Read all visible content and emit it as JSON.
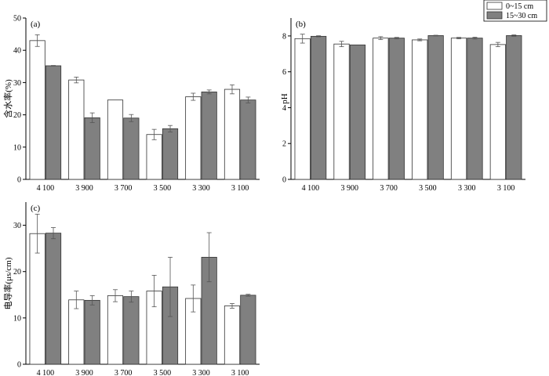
{
  "colors": {
    "series_0_fill": "#ffffff",
    "series_1_fill": "#808080",
    "bar_stroke": "#333333",
    "error_bar": "#555555"
  },
  "legend": {
    "placement": "top-right",
    "entries": [
      "0~15 cm",
      "15~30 cm"
    ]
  },
  "chart_data": [
    {
      "type": "bar",
      "panel": "(a)",
      "title": "",
      "xlabel": "",
      "ylabel": "含水率(%)",
      "ylim": [
        0,
        50
      ],
      "yticks": [
        0,
        10,
        20,
        30,
        40,
        50
      ],
      "categories": [
        "4 100",
        "3 900",
        "3 700",
        "3 500",
        "3 300",
        "3 100"
      ],
      "series": [
        {
          "name": "0~15 cm",
          "values": [
            43.0,
            30.8,
            24.6,
            13.9,
            25.6,
            27.9
          ],
          "errors": [
            1.8,
            0.9,
            0.0,
            1.6,
            1.1,
            1.4
          ]
        },
        {
          "name": "15~30 cm",
          "values": [
            35.2,
            19.1,
            19.0,
            15.7,
            27.1,
            24.6
          ],
          "errors": [
            0.1,
            1.5,
            1.1,
            1.0,
            0.6,
            0.9
          ]
        }
      ]
    },
    {
      "type": "bar",
      "panel": "(b)",
      "title": "",
      "xlabel": "",
      "ylabel": "pH",
      "ylim": [
        0,
        9
      ],
      "yticks": [
        0,
        2,
        4,
        6,
        8
      ],
      "categories": [
        "4 100",
        "3 900",
        "3 700",
        "3 500",
        "3 300",
        "3 100"
      ],
      "series": [
        {
          "name": "0~15 cm",
          "values": [
            7.85,
            7.55,
            7.88,
            7.78,
            7.88,
            7.52
          ],
          "errors": [
            0.25,
            0.15,
            0.08,
            0.05,
            0.04,
            0.12
          ]
        },
        {
          "name": "15~30 cm",
          "values": [
            7.98,
            7.5,
            7.88,
            8.02,
            7.88,
            8.02
          ],
          "errors": [
            0.03,
            0.0,
            0.04,
            0.02,
            0.05,
            0.04
          ]
        }
      ]
    },
    {
      "type": "bar",
      "panel": "(c)",
      "title": "",
      "xlabel": "",
      "ylabel": "电导率(μs/cm)",
      "ylim": [
        0,
        35
      ],
      "yticks": [
        0,
        10,
        20,
        30
      ],
      "categories": [
        "4 100",
        "3 900",
        "3 700",
        "3 500",
        "3 300",
        "3 100"
      ],
      "series": [
        {
          "name": "0~15 cm",
          "values": [
            28.2,
            13.9,
            14.8,
            15.8,
            14.2,
            12.6
          ],
          "errors": [
            4.2,
            1.9,
            1.3,
            3.4,
            2.9,
            0.5
          ]
        },
        {
          "name": "15~30 cm",
          "values": [
            28.3,
            13.8,
            14.6,
            16.7,
            23.1,
            14.9
          ],
          "errors": [
            1.2,
            1.0,
            1.2,
            6.4,
            5.3,
            0.2
          ]
        }
      ]
    }
  ]
}
